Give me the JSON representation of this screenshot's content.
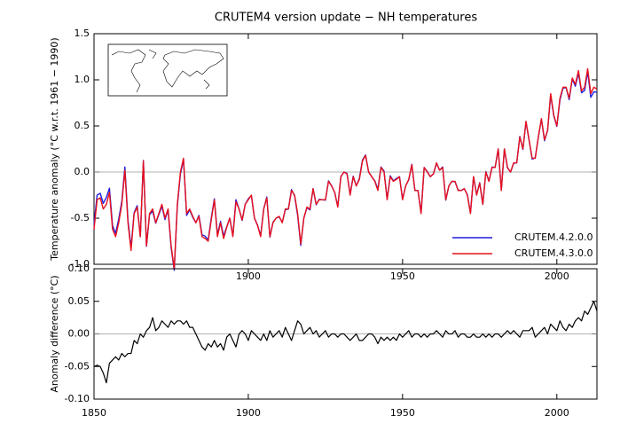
{
  "chart_data": [
    {
      "type": "line",
      "title": "CRUTEM4 version update − NH temperatures",
      "ylabel": "Temperature anomaly (°C w.r.t. 1961 − 1990)",
      "xlim": [
        1850,
        2013
      ],
      "xticks": [
        1900,
        1950,
        2000
      ],
      "ylim": [
        -1.0,
        1.5
      ],
      "yticks": [
        {
          "value": -1.0,
          "label": "-1.0"
        },
        {
          "value": -0.5,
          "label": "-0.5"
        },
        {
          "value": 0.0,
          "label": "0.0"
        },
        {
          "value": 0.5,
          "label": "0.5"
        },
        {
          "value": 1.0,
          "label": "1.0"
        },
        {
          "value": 1.5,
          "label": "1.5"
        }
      ],
      "legend": "lower right",
      "x": [
        1850,
        1851,
        1852,
        1853,
        1854,
        1855,
        1856,
        1857,
        1858,
        1859,
        1860,
        1861,
        1862,
        1863,
        1864,
        1865,
        1866,
        1867,
        1868,
        1869,
        1870,
        1871,
        1872,
        1873,
        1874,
        1875,
        1876,
        1877,
        1878,
        1879,
        1880,
        1881,
        1882,
        1883,
        1884,
        1885,
        1886,
        1887,
        1888,
        1889,
        1890,
        1891,
        1892,
        1893,
        1894,
        1895,
        1896,
        1897,
        1898,
        1899,
        1900,
        1901,
        1902,
        1903,
        1904,
        1905,
        1906,
        1907,
        1908,
        1909,
        1910,
        1911,
        1912,
        1913,
        1914,
        1915,
        1916,
        1917,
        1918,
        1919,
        1920,
        1921,
        1922,
        1923,
        1924,
        1925,
        1926,
        1927,
        1928,
        1929,
        1930,
        1931,
        1932,
        1933,
        1934,
        1935,
        1936,
        1937,
        1938,
        1939,
        1940,
        1941,
        1942,
        1943,
        1944,
        1945,
        1946,
        1947,
        1948,
        1949,
        1950,
        1951,
        1952,
        1953,
        1954,
        1955,
        1956,
        1957,
        1958,
        1959,
        1960,
        1961,
        1962,
        1963,
        1964,
        1965,
        1966,
        1967,
        1968,
        1969,
        1970,
        1971,
        1972,
        1973,
        1974,
        1975,
        1976,
        1977,
        1978,
        1979,
        1980,
        1981,
        1982,
        1983,
        1984,
        1985,
        1986,
        1987,
        1988,
        1989,
        1990,
        1991,
        1992,
        1993,
        1994,
        1995,
        1996,
        1997,
        1998,
        1999,
        2000,
        2001,
        2002,
        2003,
        2004,
        2005,
        2006,
        2007,
        2008,
        2009,
        2010,
        2011,
        2012,
        2013
      ],
      "series": [
        {
          "name": "CRUTEM.4.2.0.0",
          "color": "#1f1fe0",
          "values": [
            -0.57,
            -0.25,
            -0.23,
            -0.34,
            -0.275,
            -0.175,
            -0.58,
            -0.665,
            -0.51,
            -0.32,
            0.055,
            -0.52,
            -0.82,
            -0.44,
            -0.365,
            -0.7,
            0.125,
            -0.805,
            -0.46,
            -0.425,
            -0.555,
            -0.46,
            -0.37,
            -0.515,
            -0.41,
            -0.82,
            -1.065,
            -0.37,
            -0.02,
            0.135,
            -0.47,
            -0.41,
            -0.49,
            -0.55,
            -0.47,
            -0.68,
            -0.695,
            -0.735,
            -0.5,
            -0.29,
            -0.68,
            -0.535,
            -0.695,
            -0.595,
            -0.5,
            -0.69,
            -0.3,
            -0.4,
            -0.525,
            -0.35,
            -0.29,
            -0.255,
            -0.5,
            -0.575,
            -0.69,
            -0.4,
            -0.27,
            -0.705,
            -0.545,
            -0.5,
            -0.485,
            -0.545,
            -0.41,
            -0.4,
            -0.19,
            -0.255,
            -0.47,
            -0.795,
            -0.5,
            -0.385,
            -0.41,
            -0.18,
            -0.355,
            -0.295,
            -0.3,
            -0.305,
            -0.095,
            -0.15,
            -0.22,
            -0.375,
            -0.05,
            0.0,
            -0.015,
            -0.24,
            -0.045,
            -0.15,
            -0.07,
            0.13,
            0.185,
            0.0,
            -0.05,
            -0.095,
            -0.185,
            0.055,
            0.01,
            -0.295,
            -0.04,
            -0.095,
            -0.07,
            -0.05,
            -0.295,
            -0.15,
            -0.085,
            0.085,
            -0.2,
            -0.2,
            -0.445,
            0.05,
            0.005,
            -0.05,
            -0.02,
            0.095,
            0.02,
            0.055,
            -0.305,
            -0.15,
            -0.1,
            -0.105,
            -0.195,
            -0.2,
            -0.18,
            -0.245,
            -0.445,
            -0.05,
            -0.245,
            -0.115,
            -0.35,
            0.005,
            -0.1,
            0.055,
            0.05,
            0.25,
            -0.195,
            0.25,
            0.045,
            0.0,
            0.095,
            0.1,
            0.385,
            0.245,
            0.545,
            0.345,
            0.14,
            0.155,
            0.38,
            0.575,
            0.34,
            0.45,
            0.835,
            0.61,
            0.495,
            0.78,
            0.91,
            0.915,
            0.785,
            1.01,
            0.93,
            1.075,
            0.86,
            0.885,
            1.09,
            0.81,
            0.87,
            0.865
          ]
        },
        {
          "name": "CRUTEM.4.3.0.0",
          "color": "#e8101c",
          "values": [
            -0.62,
            -0.3,
            -0.28,
            -0.4,
            -0.35,
            -0.22,
            -0.62,
            -0.7,
            -0.55,
            -0.35,
            0.02,
            -0.55,
            -0.85,
            -0.45,
            -0.38,
            -0.7,
            0.12,
            -0.8,
            -0.45,
            -0.4,
            -0.55,
            -0.45,
            -0.35,
            -0.5,
            -0.4,
            -0.8,
            -1.05,
            -0.35,
            0.0,
            0.15,
            -0.45,
            -0.4,
            -0.48,
            -0.55,
            -0.48,
            -0.7,
            -0.72,
            -0.75,
            -0.52,
            -0.3,
            -0.7,
            -0.55,
            -0.72,
            -0.6,
            -0.5,
            -0.7,
            -0.32,
            -0.4,
            -0.52,
            -0.35,
            -0.3,
            -0.25,
            -0.5,
            -0.58,
            -0.7,
            -0.4,
            -0.28,
            -0.7,
            -0.55,
            -0.5,
            -0.48,
            -0.55,
            -0.4,
            -0.4,
            -0.2,
            -0.25,
            -0.45,
            -0.78,
            -0.5,
            -0.38,
            -0.4,
            -0.18,
            -0.35,
            -0.3,
            -0.3,
            -0.3,
            -0.1,
            -0.15,
            -0.22,
            -0.38,
            -0.05,
            0.0,
            -0.02,
            -0.25,
            -0.05,
            -0.15,
            -0.08,
            0.12,
            0.18,
            0.0,
            -0.05,
            -0.1,
            -0.2,
            0.05,
            0.0,
            -0.3,
            -0.05,
            -0.1,
            -0.08,
            -0.05,
            -0.3,
            -0.15,
            -0.08,
            0.08,
            -0.2,
            -0.2,
            -0.45,
            0.05,
            0.0,
            -0.05,
            -0.02,
            0.1,
            0.02,
            0.05,
            -0.3,
            -0.15,
            -0.1,
            -0.1,
            -0.2,
            -0.2,
            -0.18,
            -0.25,
            -0.45,
            -0.05,
            -0.25,
            -0.12,
            -0.35,
            0.0,
            -0.1,
            0.05,
            0.05,
            0.25,
            -0.2,
            0.25,
            0.05,
            0.0,
            0.1,
            0.1,
            0.38,
            0.25,
            0.55,
            0.35,
            0.15,
            0.15,
            0.38,
            0.58,
            0.35,
            0.45,
            0.85,
            0.62,
            0.5,
            0.8,
            0.92,
            0.92,
            0.8,
            1.02,
            0.95,
            1.1,
            0.88,
            0.92,
            1.12,
            0.85,
            0.92,
            0.9
          ]
        }
      ]
    },
    {
      "type": "line",
      "ylabel": "Anomaly difference (°C)",
      "xlim": [
        1850,
        2013
      ],
      "xticks": [
        1850,
        1900,
        1950,
        2000
      ],
      "ylim": [
        -0.1,
        0.1
      ],
      "yticks": [
        {
          "value": -0.1,
          "label": "-0.10"
        },
        {
          "value": -0.05,
          "label": "-0.05"
        },
        {
          "value": 0.0,
          "label": "0.00"
        },
        {
          "value": 0.05,
          "label": "0.05"
        },
        {
          "value": 0.1,
          "label": "0.10"
        }
      ],
      "x": [
        1850,
        1851,
        1852,
        1853,
        1854,
        1855,
        1856,
        1857,
        1858,
        1859,
        1860,
        1861,
        1862,
        1863,
        1864,
        1865,
        1866,
        1867,
        1868,
        1869,
        1870,
        1871,
        1872,
        1873,
        1874,
        1875,
        1876,
        1877,
        1878,
        1879,
        1880,
        1881,
        1882,
        1883,
        1884,
        1885,
        1886,
        1887,
        1888,
        1889,
        1890,
        1891,
        1892,
        1893,
        1894,
        1895,
        1896,
        1897,
        1898,
        1899,
        1900,
        1901,
        1902,
        1903,
        1904,
        1905,
        1906,
        1907,
        1908,
        1909,
        1910,
        1911,
        1912,
        1913,
        1914,
        1915,
        1916,
        1917,
        1918,
        1919,
        1920,
        1921,
        1922,
        1923,
        1924,
        1925,
        1926,
        1927,
        1928,
        1929,
        1930,
        1931,
        1932,
        1933,
        1934,
        1935,
        1936,
        1937,
        1938,
        1939,
        1940,
        1941,
        1942,
        1943,
        1944,
        1945,
        1946,
        1947,
        1948,
        1949,
        1950,
        1951,
        1952,
        1953,
        1954,
        1955,
        1956,
        1957,
        1958,
        1959,
        1960,
        1961,
        1962,
        1963,
        1964,
        1965,
        1966,
        1967,
        1968,
        1969,
        1970,
        1971,
        1972,
        1973,
        1974,
        1975,
        1976,
        1977,
        1978,
        1979,
        1980,
        1981,
        1982,
        1983,
        1984,
        1985,
        1986,
        1987,
        1988,
        1989,
        1990,
        1991,
        1992,
        1993,
        1994,
        1995,
        1996,
        1997,
        1998,
        1999,
        2000,
        2001,
        2002,
        2003,
        2004,
        2005,
        2006,
        2007,
        2008,
        2009,
        2010,
        2011,
        2012,
        2013
      ],
      "series": [
        {
          "color": "#000000",
          "values": [
            -0.05,
            -0.048,
            -0.05,
            -0.06,
            -0.075,
            -0.045,
            -0.04,
            -0.035,
            -0.04,
            -0.03,
            -0.035,
            -0.03,
            -0.03,
            -0.01,
            -0.015,
            0.0,
            -0.005,
            0.005,
            0.01,
            0.025,
            0.005,
            0.01,
            0.02,
            0.015,
            0.01,
            0.02,
            0.015,
            0.02,
            0.02,
            0.015,
            0.02,
            0.01,
            0.01,
            0.0,
            -0.01,
            -0.02,
            -0.025,
            -0.015,
            -0.02,
            -0.01,
            -0.02,
            -0.015,
            -0.025,
            -0.005,
            0.0,
            -0.01,
            -0.02,
            0.0,
            0.005,
            0.0,
            -0.01,
            0.005,
            0.0,
            -0.005,
            -0.01,
            0.0,
            -0.01,
            0.005,
            -0.005,
            0.0,
            0.005,
            -0.005,
            0.01,
            0.0,
            -0.01,
            0.005,
            0.02,
            0.015,
            0.0,
            0.005,
            0.01,
            0.0,
            0.005,
            -0.005,
            0.0,
            0.005,
            -0.005,
            0.0,
            0.0,
            -0.005,
            0.0,
            0.0,
            -0.005,
            -0.01,
            -0.005,
            0.0,
            -0.01,
            -0.01,
            -0.005,
            0.0,
            0.0,
            -0.005,
            -0.015,
            -0.005,
            -0.01,
            -0.005,
            -0.01,
            -0.005,
            -0.01,
            0.0,
            -0.005,
            0.0,
            0.005,
            -0.005,
            0.0,
            0.0,
            -0.005,
            0.0,
            -0.005,
            0.0,
            0.0,
            0.005,
            0.0,
            -0.005,
            0.005,
            0.0,
            0.0,
            0.005,
            -0.005,
            0.0,
            0.0,
            -0.005,
            -0.005,
            0.0,
            -0.005,
            -0.005,
            0.0,
            -0.005,
            0.0,
            -0.005,
            0.0,
            0.0,
            -0.005,
            0.0,
            0.005,
            0.0,
            0.005,
            0.0,
            -0.005,
            0.005,
            0.005,
            0.005,
            0.01,
            -0.005,
            0.0,
            0.005,
            0.01,
            0.0,
            0.015,
            0.01,
            0.005,
            0.02,
            0.01,
            0.005,
            0.015,
            0.01,
            0.02,
            0.025,
            0.02,
            0.035,
            0.03,
            0.04,
            0.05,
            0.035
          ]
        }
      ]
    }
  ]
}
